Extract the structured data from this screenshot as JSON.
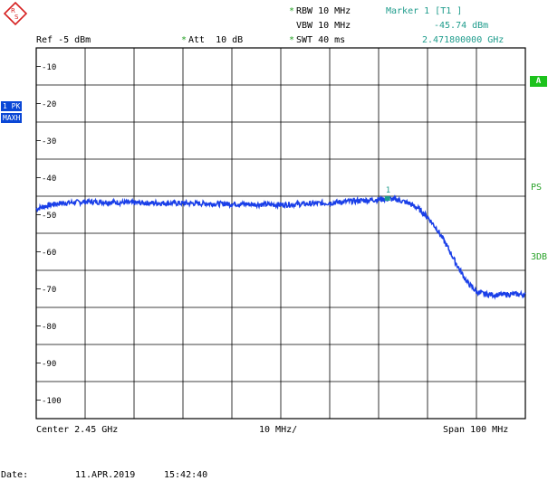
{
  "header": {
    "ref": "Ref -5 dBm",
    "att": "Att  10 dB",
    "rbw": "RBW 10 MHz",
    "vbw": "VBW 10 MHz",
    "swt": "SWT 40 ms",
    "marker_title": "Marker 1 [T1 ]",
    "marker_level": "-45.74 dBm",
    "marker_freq": "2.471800000 GHz",
    "star": "*"
  },
  "side": {
    "trace_badge_line1": "1 PK",
    "trace_badge_line2": "MAXH",
    "a_label": "A",
    "ps_label": "PS",
    "db_label": "3DB"
  },
  "footer": {
    "center": "Center 2.45 GHz",
    "div": "10 MHz/",
    "span": "Span 100 MHz",
    "date_label": "Date:",
    "date": "11.APR.2019",
    "time": "15:42:40"
  },
  "colors": {
    "trace": "#1a3fe8",
    "marker": "#1f9c8c",
    "grid": "#000000",
    "softkey_a": "#1cc21c",
    "badge": "#0a47d6"
  },
  "chart_data": {
    "type": "line",
    "x_unit": "GHz",
    "x_range": [
      2.4,
      2.5
    ],
    "ylim": [
      -105,
      -5
    ],
    "y_ticks": [
      "-10",
      "-20",
      "-30",
      "-40",
      "-50",
      "-60",
      "-70",
      "-80",
      "-90",
      "-100"
    ],
    "y_tick_values": [
      -10,
      -20,
      -30,
      -40,
      -50,
      -60,
      -70,
      -80,
      -90,
      -100
    ],
    "grid": true,
    "series": [
      {
        "x": [
          2.4,
          2.401,
          2.403,
          2.405,
          2.41,
          2.415,
          2.42,
          2.43,
          2.44,
          2.45,
          2.455,
          2.46,
          2.465,
          2.47,
          2.472,
          2.474,
          2.476,
          2.478,
          2.48,
          2.482,
          2.484,
          2.486,
          2.488,
          2.49,
          2.492,
          2.494,
          2.496,
          2.498,
          2.5
        ],
        "values": [
          -48.5,
          -48.0,
          -47.3,
          -46.9,
          -46.5,
          -46.6,
          -46.8,
          -46.9,
          -47.1,
          -47.3,
          -47.1,
          -46.8,
          -46.3,
          -45.9,
          -45.7,
          -46.0,
          -46.8,
          -48.2,
          -50.6,
          -54.0,
          -58.5,
          -63.5,
          -68.0,
          -70.8,
          -71.5,
          -71.6,
          -71.5,
          -71.4,
          -71.6
        ]
      }
    ],
    "marker": {
      "label": "1",
      "x": 2.4718,
      "y": -45.74
    }
  }
}
